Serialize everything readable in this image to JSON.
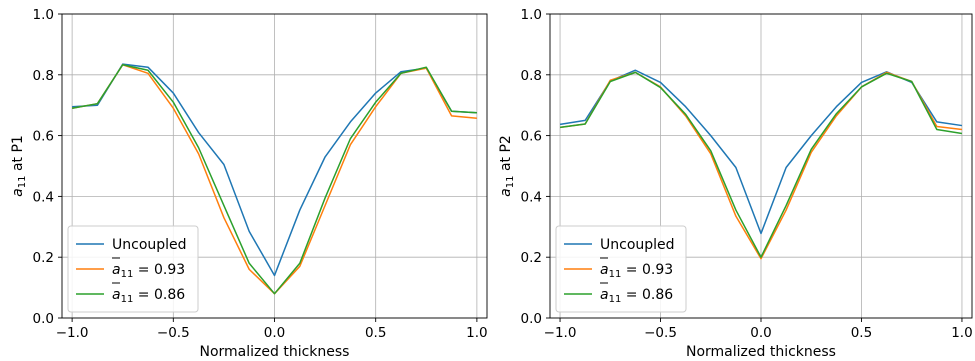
{
  "chart_data": [
    {
      "type": "line",
      "xlabel": "Normalized thickness",
      "ylabel": {
        "base": "a",
        "sub": "11",
        "suffix": " at P1"
      },
      "xlim": [
        -1.05,
        1.05
      ],
      "ylim": [
        0.0,
        1.0
      ],
      "xticks": [
        -1.0,
        -0.5,
        0.0,
        0.5,
        1.0
      ],
      "xtick_labels": [
        "−1.0",
        "−0.5",
        "0.0",
        "0.5",
        "1.0"
      ],
      "yticks": [
        0.0,
        0.2,
        0.4,
        0.6,
        0.8,
        1.0
      ],
      "ytick_labels": [
        "0.0",
        "0.2",
        "0.4",
        "0.6",
        "0.8",
        "1.0"
      ],
      "grid": true,
      "legend_position": "lower-left",
      "x": [
        -1.0,
        -0.875,
        -0.75,
        -0.625,
        -0.5,
        -0.375,
        -0.25,
        -0.125,
        0.0,
        0.125,
        0.25,
        0.375,
        0.5,
        0.625,
        0.75,
        0.875,
        1.0
      ],
      "series": [
        {
          "name": "Uncoupled",
          "legend": {
            "text": "Uncoupled"
          },
          "color": "#1f77b4",
          "values": [
            0.695,
            0.7,
            0.835,
            0.825,
            0.74,
            0.61,
            0.505,
            0.285,
            0.14,
            0.355,
            0.53,
            0.645,
            0.74,
            0.81,
            0.822,
            0.68,
            0.675
          ]
        },
        {
          "name": "a̅11 = 0.93",
          "legend": {
            "base": "a",
            "sub": "11",
            "suffix": " = 0.93"
          },
          "color": "#ff7f0e",
          "values": [
            0.69,
            0.705,
            0.833,
            0.805,
            0.69,
            0.54,
            0.33,
            0.16,
            0.08,
            0.17,
            0.37,
            0.57,
            0.695,
            0.805,
            0.822,
            0.665,
            0.657
          ]
        },
        {
          "name": "a̅11 = 0.86",
          "legend": {
            "base": "a",
            "sub": "11",
            "suffix": " = 0.86"
          },
          "color": "#2ca02c",
          "values": [
            0.69,
            0.705,
            0.833,
            0.815,
            0.71,
            0.56,
            0.37,
            0.18,
            0.08,
            0.18,
            0.395,
            0.59,
            0.71,
            0.805,
            0.825,
            0.68,
            0.675
          ]
        }
      ]
    },
    {
      "type": "line",
      "xlabel": "Normalized thickness",
      "ylabel": {
        "base": "a",
        "sub": "11",
        "suffix": " at P2"
      },
      "xlim": [
        -1.05,
        1.05
      ],
      "ylim": [
        0.0,
        1.0
      ],
      "xticks": [
        -1.0,
        -0.5,
        0.0,
        0.5,
        1.0
      ],
      "xtick_labels": [
        "−1.0",
        "−0.5",
        "0.0",
        "0.5",
        "1.0"
      ],
      "yticks": [
        0.0,
        0.2,
        0.4,
        0.6,
        0.8,
        1.0
      ],
      "ytick_labels": [
        "0.0",
        "0.2",
        "0.4",
        "0.6",
        "0.8",
        "1.0"
      ],
      "grid": true,
      "legend_position": "lower-left",
      "x": [
        -1.0,
        -0.875,
        -0.75,
        -0.625,
        -0.5,
        -0.375,
        -0.25,
        -0.125,
        0.0,
        0.125,
        0.25,
        0.375,
        0.5,
        0.625,
        0.75,
        0.875,
        1.0
      ],
      "series": [
        {
          "name": "Uncoupled",
          "legend": {
            "text": "Uncoupled"
          },
          "color": "#1f77b4",
          "values": [
            0.637,
            0.65,
            0.78,
            0.815,
            0.775,
            0.695,
            0.6,
            0.495,
            0.278,
            0.495,
            0.6,
            0.695,
            0.775,
            0.81,
            0.775,
            0.645,
            0.633
          ]
        },
        {
          "name": "a̅11 = 0.93",
          "legend": {
            "base": "a",
            "sub": "11",
            "suffix": " = 0.93"
          },
          "color": "#ff7f0e",
          "values": [
            0.627,
            0.638,
            0.782,
            0.808,
            0.76,
            0.665,
            0.54,
            0.335,
            0.195,
            0.355,
            0.545,
            0.665,
            0.76,
            0.808,
            0.778,
            0.63,
            0.62
          ]
        },
        {
          "name": "a̅11 = 0.86",
          "legend": {
            "base": "a",
            "sub": "11",
            "suffix": " = 0.86"
          },
          "color": "#2ca02c",
          "values": [
            0.627,
            0.638,
            0.778,
            0.808,
            0.758,
            0.67,
            0.55,
            0.355,
            0.2,
            0.37,
            0.555,
            0.672,
            0.76,
            0.805,
            0.778,
            0.62,
            0.607
          ]
        }
      ]
    }
  ]
}
